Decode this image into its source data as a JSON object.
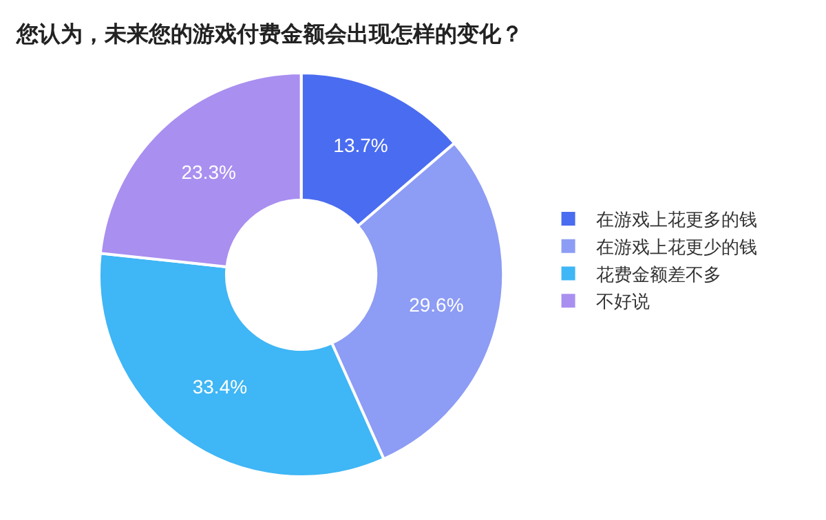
{
  "chart_data": {
    "type": "donut",
    "title": "您认为，未来您的游戏付费金额会出现怎样的变化？",
    "categories": [
      "在游戏上花更多的钱",
      "在游戏上花更少的钱",
      "花费金额差不多",
      "不好说"
    ],
    "values": [
      13.7,
      29.6,
      33.4,
      23.3
    ],
    "colors": [
      "#4a6cf0",
      "#8d9cf4",
      "#3fb6f5",
      "#a98ff0"
    ],
    "value_labels": [
      "13.7%",
      "29.6%",
      "33.4%",
      "23.3%"
    ],
    "legend": "right"
  }
}
